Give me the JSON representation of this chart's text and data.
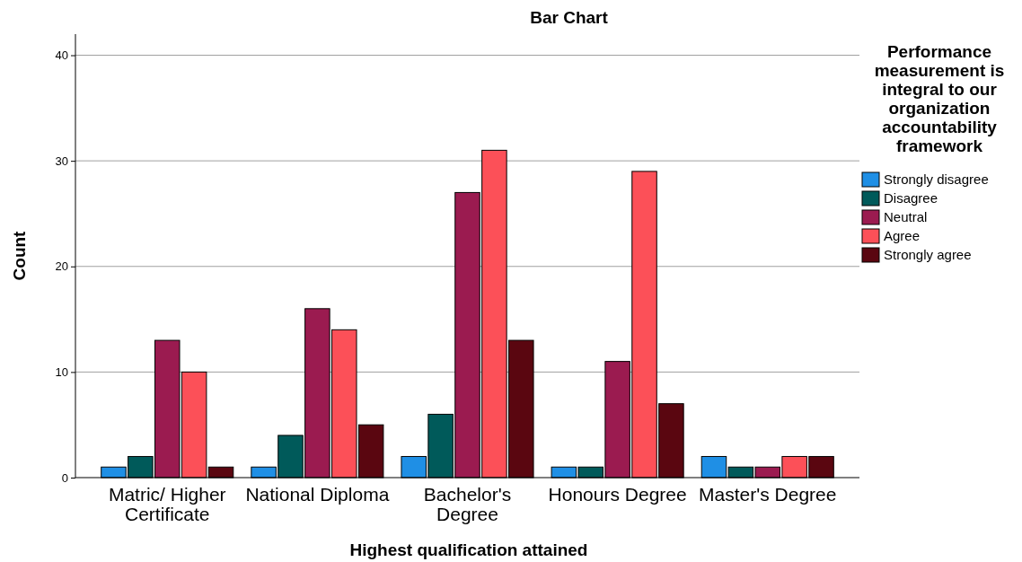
{
  "chart_data": {
    "type": "bar",
    "title": "Bar Chart",
    "xlabel": "Highest qualification attained",
    "ylabel": "Count",
    "legend_title": "Performance measurement is integral to our organization accountability framework",
    "categories": [
      "Matric/ Higher Certificate",
      "National Diploma",
      "Bachelor's Degree",
      "Honours Degree",
      "Master's Degree"
    ],
    "series": [
      {
        "name": "Strongly disagree",
        "color": "#1f8fe5",
        "values": [
          1,
          1,
          2,
          1,
          2
        ]
      },
      {
        "name": "Disagree",
        "color": "#005a5a",
        "values": [
          2,
          4,
          6,
          1,
          1
        ]
      },
      {
        "name": "Neutral",
        "color": "#9b1b50",
        "values": [
          13,
          16,
          27,
          11,
          1
        ]
      },
      {
        "name": "Agree",
        "color": "#fc5058",
        "values": [
          10,
          14,
          31,
          29,
          2
        ]
      },
      {
        "name": "Strongly agree",
        "color": "#5a0610",
        "values": [
          1,
          5,
          13,
          7,
          2
        ]
      }
    ],
    "ylim": [
      0,
      42
    ],
    "yticks": [
      0,
      10,
      20,
      30,
      40
    ],
    "grid": "y",
    "legend": "right"
  }
}
